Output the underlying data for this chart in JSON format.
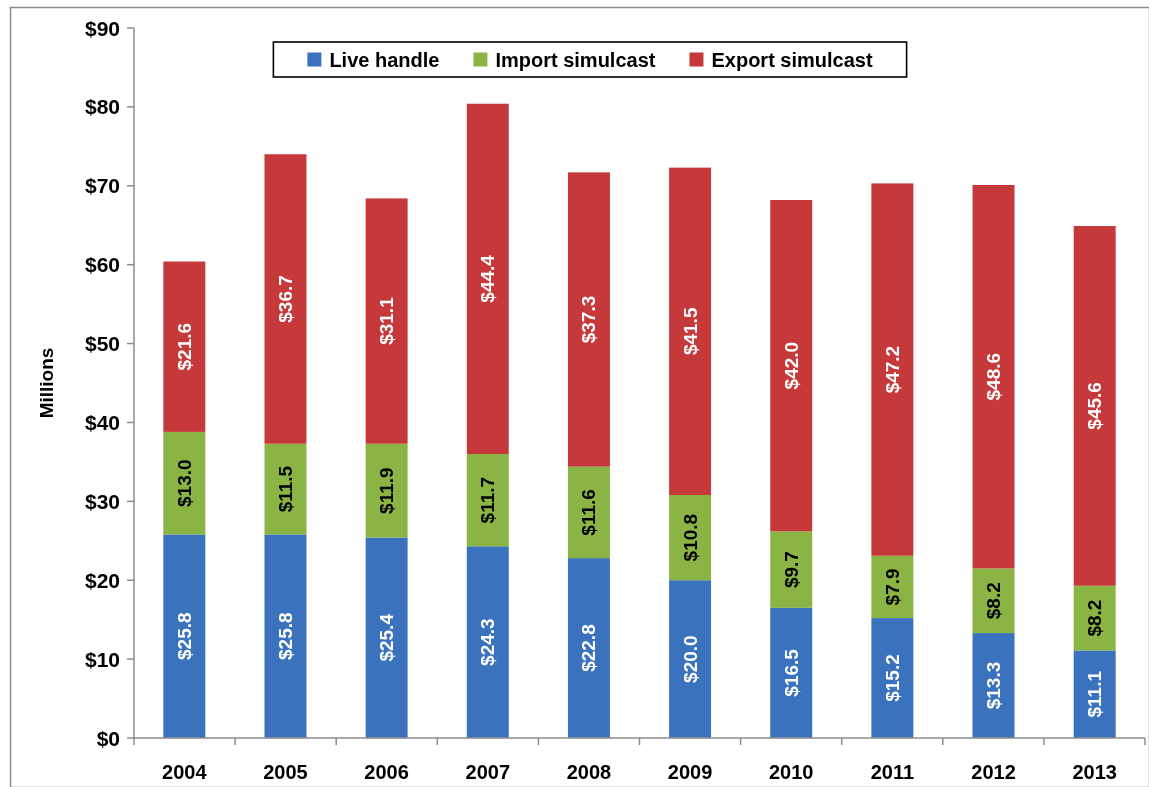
{
  "chart_data": {
    "type": "bar",
    "stacked": true,
    "ylabel": "Millions",
    "categories": [
      "2004",
      "2005",
      "2006",
      "2007",
      "2008",
      "2009",
      "2010",
      "2011",
      "2012",
      "2013"
    ],
    "series": [
      {
        "name": "Live handle",
        "color": "#3a72be",
        "values": [
          25.8,
          25.8,
          25.4,
          24.3,
          22.8,
          20.0,
          16.5,
          15.2,
          13.3,
          11.1
        ],
        "value_labels": [
          "$25.8",
          "$25.8",
          "$25.4",
          "$24.3",
          "$22.8",
          "$20.0",
          "$16.5",
          "$15.2",
          "$13.3",
          "$11.1"
        ]
      },
      {
        "name": "Import simulcast",
        "color": "#8ab443",
        "values": [
          13.0,
          11.5,
          11.9,
          11.7,
          11.6,
          10.8,
          9.7,
          7.9,
          8.2,
          8.2
        ],
        "value_labels": [
          "$13.0",
          "$11.5",
          "$11.9",
          "$11.7",
          "$11.6",
          "$10.8",
          "$9.7",
          "$7.9",
          "$8.2",
          "$8.2"
        ]
      },
      {
        "name": "Export simulcast",
        "color": "#c6393a",
        "values": [
          21.6,
          36.7,
          31.1,
          44.4,
          37.3,
          41.5,
          42.0,
          47.2,
          48.6,
          45.6
        ],
        "value_labels": [
          "$21.6",
          "$36.7",
          "$31.1",
          "$44.4",
          "$37.3",
          "$41.5",
          "$42.0",
          "$47.2",
          "$48.6",
          "$45.6"
        ]
      }
    ],
    "ylim": [
      0,
      90
    ],
    "yticks": [
      {
        "value": 0,
        "label": "$0"
      },
      {
        "value": 10,
        "label": "$10"
      },
      {
        "value": 20,
        "label": "$20"
      },
      {
        "value": 30,
        "label": "$30"
      },
      {
        "value": 40,
        "label": "$40"
      },
      {
        "value": 50,
        "label": "$50"
      },
      {
        "value": 60,
        "label": "$60"
      },
      {
        "value": 70,
        "label": "$70"
      },
      {
        "value": 80,
        "label": "$80"
      },
      {
        "value": 90,
        "label": "$90"
      }
    ],
    "grid": false,
    "legend": "top"
  }
}
